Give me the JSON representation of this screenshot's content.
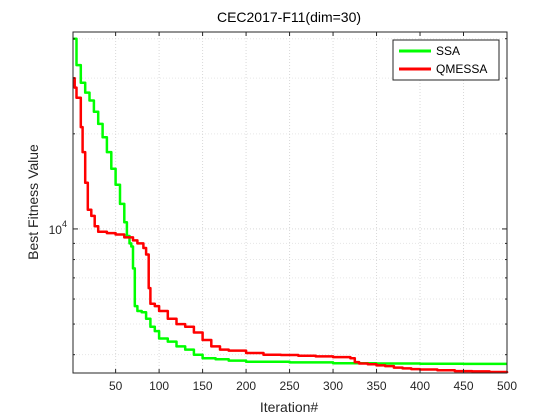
{
  "chart_data": {
    "type": "line",
    "title": "CEC2017-F11(dim=30)",
    "xlabel": "Iteration#",
    "ylabel": "Best Fitness Value",
    "xlim": [
      1,
      500
    ],
    "ylim": [
      3500,
      42000
    ],
    "yscale": "log",
    "grid": true,
    "legend_position": "top-right",
    "x_ticks": [
      50,
      100,
      150,
      200,
      250,
      300,
      350,
      400,
      450,
      500
    ],
    "y_tick_labels": [
      {
        "base": "10",
        "exp": "4",
        "value": 10000
      }
    ],
    "series": [
      {
        "name": "SSA",
        "color": "#00ff00",
        "points": [
          [
            1,
            40000
          ],
          [
            5,
            33000
          ],
          [
            10,
            29000
          ],
          [
            15,
            27000
          ],
          [
            20,
            25500
          ],
          [
            25,
            23500
          ],
          [
            30,
            21500
          ],
          [
            35,
            19500
          ],
          [
            40,
            17500
          ],
          [
            45,
            15500
          ],
          [
            50,
            13800
          ],
          [
            55,
            12000
          ],
          [
            60,
            10500
          ],
          [
            63,
            9500
          ],
          [
            66,
            9000
          ],
          [
            68,
            8800
          ],
          [
            70,
            7500
          ],
          [
            72,
            5700
          ],
          [
            75,
            5500
          ],
          [
            80,
            5450
          ],
          [
            85,
            5200
          ],
          [
            90,
            4900
          ],
          [
            95,
            4750
          ],
          [
            100,
            4500
          ],
          [
            110,
            4400
          ],
          [
            120,
            4250
          ],
          [
            130,
            4150
          ],
          [
            140,
            4000
          ],
          [
            150,
            3900
          ],
          [
            165,
            3870
          ],
          [
            180,
            3830
          ],
          [
            200,
            3800
          ],
          [
            250,
            3780
          ],
          [
            300,
            3760
          ],
          [
            350,
            3750
          ],
          [
            400,
            3745
          ],
          [
            450,
            3740
          ],
          [
            500,
            3740
          ]
        ]
      },
      {
        "name": "QMESSA",
        "color": "#ff0000",
        "points": [
          [
            1,
            30000
          ],
          [
            3,
            28000
          ],
          [
            5,
            26000
          ],
          [
            10,
            21000
          ],
          [
            12,
            17500
          ],
          [
            15,
            14000
          ],
          [
            18,
            11500
          ],
          [
            22,
            11000
          ],
          [
            26,
            10200
          ],
          [
            30,
            9800
          ],
          [
            40,
            9700
          ],
          [
            50,
            9600
          ],
          [
            60,
            9400
          ],
          [
            70,
            9200
          ],
          [
            75,
            9000
          ],
          [
            82,
            8700
          ],
          [
            85,
            8300
          ],
          [
            88,
            6500
          ],
          [
            90,
            5800
          ],
          [
            95,
            5700
          ],
          [
            100,
            5500
          ],
          [
            110,
            5200
          ],
          [
            120,
            5000
          ],
          [
            130,
            4900
          ],
          [
            140,
            4700
          ],
          [
            150,
            4450
          ],
          [
            160,
            4250
          ],
          [
            170,
            4150
          ],
          [
            180,
            4120
          ],
          [
            200,
            4050
          ],
          [
            220,
            4000
          ],
          [
            240,
            3990
          ],
          [
            260,
            3970
          ],
          [
            280,
            3950
          ],
          [
            300,
            3930
          ],
          [
            320,
            3900
          ],
          [
            325,
            3790
          ],
          [
            330,
            3750
          ],
          [
            340,
            3730
          ],
          [
            350,
            3700
          ],
          [
            360,
            3680
          ],
          [
            370,
            3640
          ],
          [
            380,
            3620
          ],
          [
            390,
            3600
          ],
          [
            400,
            3590
          ],
          [
            420,
            3570
          ],
          [
            440,
            3550
          ],
          [
            460,
            3540
          ],
          [
            480,
            3525
          ],
          [
            500,
            3500
          ]
        ]
      }
    ]
  }
}
